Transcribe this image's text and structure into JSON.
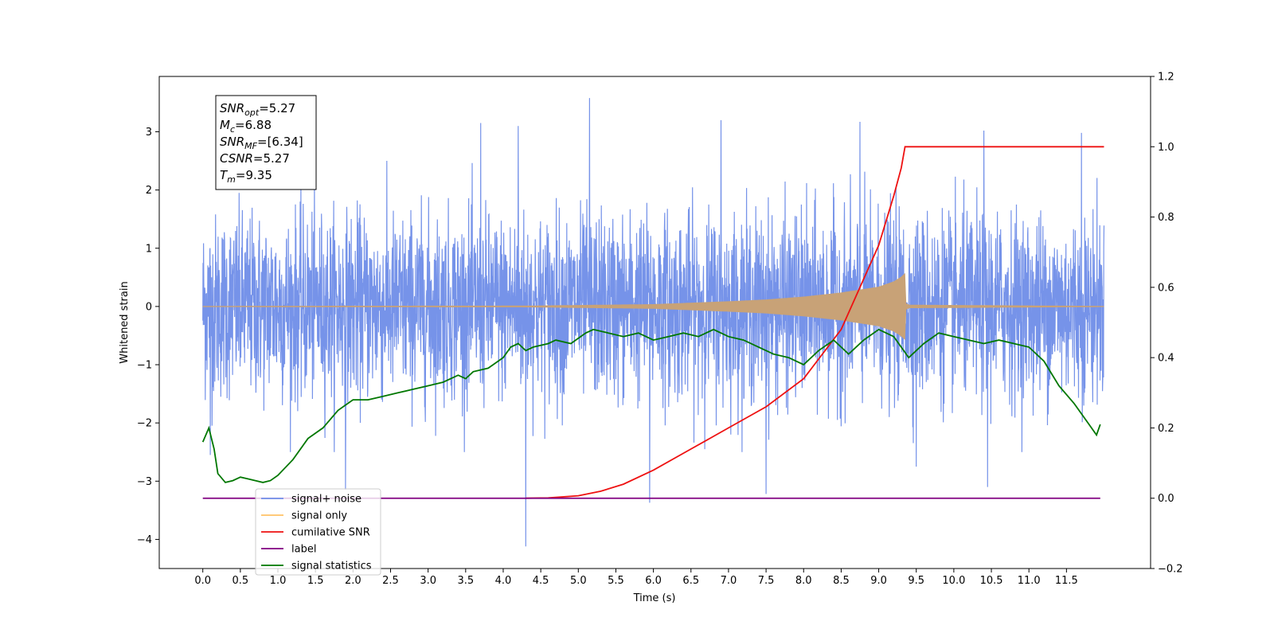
{
  "chart_data": {
    "type": "line",
    "title": "",
    "xlabel": "Time (s)",
    "ylabel": "Whitened strain",
    "y2label": "",
    "xlim": [
      -0.58,
      12.62
    ],
    "ylim": [
      -4.5,
      3.95
    ],
    "y2lim": [
      -0.2,
      1.2
    ],
    "x_ticks": [
      0.0,
      0.5,
      1.0,
      1.5,
      2.0,
      2.5,
      3.0,
      3.5,
      4.0,
      4.5,
      5.0,
      5.5,
      6.0,
      6.5,
      7.0,
      7.5,
      8.0,
      8.5,
      9.0,
      9.5,
      10.0,
      10.5,
      11.0,
      11.5
    ],
    "x_tick_labels": [
      "0.0",
      "0.5",
      "1.0",
      "1.5",
      "2.0",
      "2.5",
      "3.0",
      "3.5",
      "4.0",
      "4.5",
      "5.0",
      "5.5",
      "6.0",
      "6.5",
      "7.0",
      "7.5",
      "8.0",
      "8.5",
      "9.0",
      "9.5",
      "10.0",
      "10.5",
      "11.0",
      "11.5"
    ],
    "y_ticks": [
      -4,
      -3,
      -2,
      -1,
      0,
      1,
      2,
      3
    ],
    "y_tick_labels": [
      "−4",
      "−3",
      "−2",
      "−1",
      "0",
      "1",
      "2",
      "3"
    ],
    "y2_ticks": [
      -0.2,
      0.0,
      0.2,
      0.4,
      0.6,
      0.8,
      1.0,
      1.2
    ],
    "y2_tick_labels": [
      "−0.2",
      "0.0",
      "0.2",
      "0.4",
      "0.6",
      "0.8",
      "1.0",
      "1.2"
    ],
    "grid": false,
    "legend_position": "lower-left",
    "legend": [
      {
        "label": "signal+ noise",
        "color": "#6f8de8"
      },
      {
        "label": "signal only",
        "color": "#ffc266"
      },
      {
        "label": "cumilative SNR",
        "color": "#ee1111"
      },
      {
        "label": "label",
        "color": "#800080"
      },
      {
        "label": "signal statistics",
        "color": "#007700"
      }
    ],
    "annotation": [
      {
        "base": "SNR",
        "sub": "opt",
        "value": "=5.27"
      },
      {
        "base": "M",
        "sub": "c",
        "value": "=6.88"
      },
      {
        "base": "SNR",
        "sub": "MF",
        "value": "=[6.34]"
      },
      {
        "base": "CSNR",
        "sub": "",
        "value": "=5.27"
      },
      {
        "base": "T",
        "sub": "m",
        "value": "=9.35"
      }
    ],
    "series": [
      {
        "name": "signal+ noise",
        "axis": "left",
        "color": "#6f8de8",
        "x_range": [
          0.0,
          12.0
        ],
        "envelope_typical": [
          -1.3,
          1.3
        ],
        "peaks": [
          {
            "x": 5.15,
            "y": 3.58
          },
          {
            "x": 3.7,
            "y": 3.15
          },
          {
            "x": 4.2,
            "y": 3.1
          },
          {
            "x": 6.9,
            "y": 3.2
          },
          {
            "x": 8.75,
            "y": 3.17
          },
          {
            "x": 10.4,
            "y": 3.02
          },
          {
            "x": 11.7,
            "y": 2.98
          },
          {
            "x": 4.3,
            "y": -4.12
          },
          {
            "x": 5.95,
            "y": -3.37
          },
          {
            "x": 7.5,
            "y": -3.22
          },
          {
            "x": 10.45,
            "y": -3.1
          },
          {
            "x": 1.9,
            "y": -3.15
          },
          {
            "x": 0.1,
            "y": -2.55
          },
          {
            "x": 9.5,
            "y": -2.75
          }
        ]
      },
      {
        "name": "signal only",
        "axis": "left",
        "color": "#c8a277",
        "note": "chirp, amplitude grows from ~4.3 s to merger at 9.35 s",
        "amplitude": {
          "x": [
            0,
            4.3,
            6.0,
            7.0,
            7.5,
            8.0,
            8.5,
            9.0,
            9.2,
            9.3,
            9.35,
            9.36,
            9.4,
            12.0
          ],
          "y": [
            0,
            0.005,
            0.03,
            0.08,
            0.11,
            0.16,
            0.23,
            0.33,
            0.42,
            0.5,
            0.56,
            0.05,
            0.02,
            0.0
          ]
        }
      },
      {
        "name": "cumilative SNR",
        "axis": "right",
        "color": "#ee1111",
        "x": [
          4.3,
          4.6,
          5.0,
          5.3,
          5.6,
          6.0,
          6.5,
          7.0,
          7.5,
          8.0,
          8.5,
          9.0,
          9.2,
          9.3,
          9.35,
          9.4,
          12.0
        ],
        "y": [
          0.0,
          0.001,
          0.007,
          0.02,
          0.04,
          0.08,
          0.14,
          0.2,
          0.26,
          0.34,
          0.48,
          0.72,
          0.86,
          0.94,
          1.0,
          1.0,
          1.0
        ]
      },
      {
        "name": "label",
        "axis": "right",
        "color": "#800080",
        "x": [
          0.0,
          11.95
        ],
        "y": [
          0.0,
          0.0
        ]
      },
      {
        "name": "signal statistics",
        "axis": "right",
        "color": "#007700",
        "x": [
          0.0,
          0.08,
          0.15,
          0.2,
          0.3,
          0.4,
          0.5,
          0.6,
          0.7,
          0.8,
          0.9,
          1.0,
          1.2,
          1.4,
          1.6,
          1.8,
          2.0,
          2.2,
          2.4,
          2.6,
          2.8,
          3.0,
          3.2,
          3.4,
          3.5,
          3.6,
          3.8,
          4.0,
          4.1,
          4.2,
          4.3,
          4.4,
          4.6,
          4.7,
          4.9,
          5.1,
          5.2,
          5.4,
          5.6,
          5.8,
          6.0,
          6.2,
          6.4,
          6.6,
          6.8,
          7.0,
          7.2,
          7.4,
          7.6,
          7.8,
          8.0,
          8.2,
          8.4,
          8.6,
          8.8,
          9.0,
          9.2,
          9.4,
          9.6,
          9.8,
          10.0,
          10.2,
          10.4,
          10.6,
          10.8,
          11.0,
          11.2,
          11.4,
          11.6,
          11.8,
          11.9,
          11.95
        ],
        "y": [
          0.16,
          0.2,
          0.14,
          0.07,
          0.045,
          0.05,
          0.06,
          0.055,
          0.05,
          0.045,
          0.05,
          0.065,
          0.11,
          0.17,
          0.2,
          0.25,
          0.28,
          0.28,
          0.29,
          0.3,
          0.31,
          0.32,
          0.33,
          0.35,
          0.34,
          0.36,
          0.37,
          0.4,
          0.43,
          0.44,
          0.42,
          0.43,
          0.44,
          0.45,
          0.44,
          0.47,
          0.48,
          0.47,
          0.46,
          0.47,
          0.45,
          0.46,
          0.47,
          0.46,
          0.48,
          0.46,
          0.45,
          0.43,
          0.41,
          0.4,
          0.38,
          0.42,
          0.45,
          0.41,
          0.45,
          0.48,
          0.46,
          0.4,
          0.44,
          0.47,
          0.46,
          0.45,
          0.44,
          0.45,
          0.44,
          0.43,
          0.39,
          0.32,
          0.27,
          0.21,
          0.18,
          0.21
        ]
      }
    ]
  }
}
